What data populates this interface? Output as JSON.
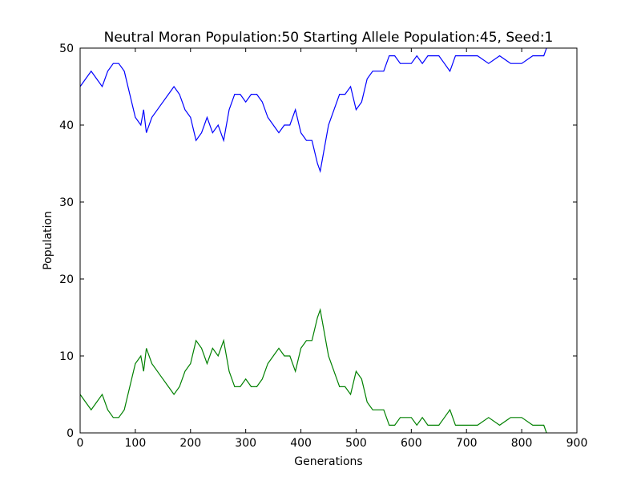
{
  "chart_data": {
    "type": "line",
    "title": "Neutral Moran Population:50 Starting Allele Population:45, Seed:1",
    "xlabel": "Generations",
    "ylabel": "Population",
    "x": [
      0,
      10,
      20,
      30,
      40,
      50,
      60,
      70,
      80,
      90,
      100,
      110,
      115,
      120,
      130,
      140,
      150,
      160,
      170,
      180,
      190,
      200,
      210,
      220,
      230,
      240,
      250,
      260,
      270,
      280,
      290,
      300,
      310,
      320,
      330,
      340,
      350,
      360,
      370,
      380,
      390,
      400,
      410,
      420,
      430,
      435,
      440,
      450,
      460,
      470,
      480,
      490,
      500,
      510,
      520,
      530,
      540,
      550,
      560,
      570,
      580,
      600,
      610,
      620,
      630,
      650,
      660,
      670,
      680,
      700,
      720,
      740,
      760,
      780,
      800,
      820,
      840,
      845
    ],
    "series": [
      {
        "color": "#0000ff",
        "values": [
          45,
          46,
          47,
          46,
          45,
          47,
          48,
          48,
          47,
          44,
          41,
          40,
          42,
          39,
          41,
          42,
          43,
          44,
          45,
          44,
          42,
          41,
          38,
          39,
          41,
          39,
          40,
          38,
          42,
          44,
          44,
          43,
          44,
          44,
          43,
          41,
          40,
          39,
          40,
          40,
          42,
          39,
          38,
          38,
          35,
          34,
          36,
          40,
          42,
          44,
          44,
          45,
          42,
          43,
          46,
          47,
          47,
          47,
          49,
          49,
          48,
          48,
          49,
          48,
          49,
          49,
          48,
          47,
          49,
          49,
          49,
          48,
          49,
          48,
          48,
          49,
          49,
          50
        ]
      },
      {
        "color": "#008000",
        "values": [
          5,
          4,
          3,
          4,
          5,
          3,
          2,
          2,
          3,
          6,
          9,
          10,
          8,
          11,
          9,
          8,
          7,
          6,
          5,
          6,
          8,
          9,
          12,
          11,
          9,
          11,
          10,
          12,
          8,
          6,
          6,
          7,
          6,
          6,
          7,
          9,
          10,
          11,
          10,
          10,
          8,
          11,
          12,
          12,
          15,
          16,
          14,
          10,
          8,
          6,
          6,
          5,
          8,
          7,
          4,
          3,
          3,
          3,
          1,
          1,
          2,
          2,
          1,
          2,
          1,
          1,
          2,
          3,
          1,
          1,
          1,
          2,
          1,
          2,
          2,
          1,
          1,
          0
        ]
      }
    ],
    "xlim": [
      0,
      900
    ],
    "ylim": [
      0,
      50
    ],
    "xticks": [
      0,
      100,
      200,
      300,
      400,
      500,
      600,
      700,
      800,
      900
    ],
    "yticks": [
      0,
      10,
      20,
      30,
      40,
      50
    ]
  }
}
